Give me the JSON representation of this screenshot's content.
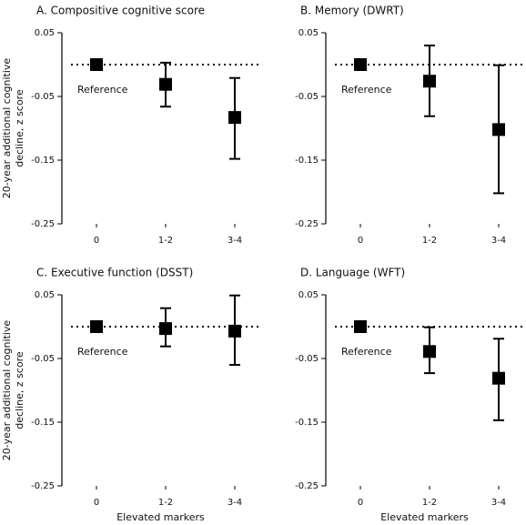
{
  "chart_data": [
    {
      "type": "errorbar",
      "title": "A. Compositive cognitive score",
      "y_label": [
        "20-year additional cognitive",
        "decline, z score"
      ],
      "categories": [
        "0",
        "1-2",
        "3-4"
      ],
      "values": [
        0,
        -0.031,
        -0.083
      ],
      "ci_low": [
        null,
        -0.066,
        -0.148
      ],
      "ci_high": [
        null,
        0.003,
        -0.021
      ],
      "annotation": "Reference",
      "reference_line": 0,
      "color": "#000000",
      "ylim": [
        -0.25,
        0.05
      ],
      "yticks": [
        0.05,
        -0.05,
        -0.15,
        -0.25
      ]
    },
    {
      "type": "errorbar",
      "title": "B. Memory (DWRT)",
      "categories": [
        "0",
        "1-2",
        "3-4"
      ],
      "values": [
        0,
        -0.026,
        -0.102
      ],
      "ci_low": [
        null,
        -0.081,
        -0.202
      ],
      "ci_high": [
        null,
        0.03,
        -0.001
      ],
      "annotation": "Reference",
      "reference_line": 0,
      "color": "#000000",
      "ylim": [
        -0.25,
        0.05
      ],
      "yticks": [
        0.05,
        -0.05,
        -0.15,
        -0.25
      ]
    },
    {
      "type": "errorbar",
      "title": "C. Executive function (DSST)",
      "y_label": [
        "20-year additional cognitive",
        "decline, z score"
      ],
      "x_label": "Elevated markers",
      "categories": [
        "0",
        "1-2",
        "3-4"
      ],
      "values": [
        0,
        -0.003,
        -0.007
      ],
      "ci_low": [
        null,
        -0.031,
        -0.06
      ],
      "ci_high": [
        null,
        0.029,
        0.049
      ],
      "annotation": "Reference",
      "reference_line": 0,
      "color": "#000000",
      "ylim": [
        -0.25,
        0.05
      ],
      "yticks": [
        0.05,
        -0.05,
        -0.15,
        -0.25
      ]
    },
    {
      "type": "errorbar",
      "title": "D. Language (WFT)",
      "x_label": "Elevated markers",
      "categories": [
        "0",
        "1-2",
        "3-4"
      ],
      "values": [
        0,
        -0.039,
        -0.081
      ],
      "ci_low": [
        null,
        -0.073,
        -0.147
      ],
      "ci_high": [
        null,
        -0.001,
        -0.019
      ],
      "annotation": "Reference",
      "reference_line": 0,
      "color": "#000000",
      "ylim": [
        -0.25,
        0.05
      ],
      "yticks": [
        0.05,
        -0.05,
        -0.15,
        -0.25
      ]
    }
  ]
}
